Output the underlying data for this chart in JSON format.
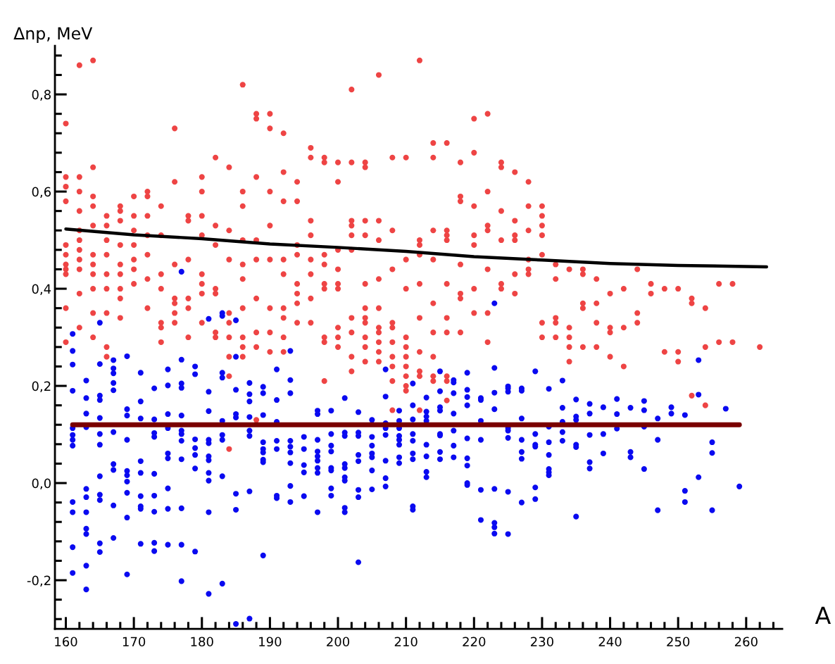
{
  "chart_data": {
    "type": "scatter",
    "xlabel": "A",
    "ylabel": "Δnp, MeV",
    "xlim": [
      158.4,
      265.3
    ],
    "ylim": [
      -0.3,
      0.9
    ],
    "xticks": [
      {
        "value": 160,
        "label": "160"
      },
      {
        "value": 162,
        "label": null
      },
      {
        "value": 164,
        "label": null
      },
      {
        "value": 166,
        "label": null
      },
      {
        "value": 168,
        "label": null
      },
      {
        "value": 170,
        "label": "170"
      },
      {
        "value": 172,
        "label": null
      },
      {
        "value": 174,
        "label": null
      },
      {
        "value": 176,
        "label": null
      },
      {
        "value": 178,
        "label": null
      },
      {
        "value": 180,
        "label": "180"
      },
      {
        "value": 182,
        "label": null
      },
      {
        "value": 184,
        "label": null
      },
      {
        "value": 186,
        "label": null
      },
      {
        "value": 188,
        "label": null
      },
      {
        "value": 190,
        "label": "190"
      },
      {
        "value": 192,
        "label": null
      },
      {
        "value": 194,
        "label": null
      },
      {
        "value": 196,
        "label": null
      },
      {
        "value": 198,
        "label": null
      },
      {
        "value": 200,
        "label": "200"
      },
      {
        "value": 202,
        "label": null
      },
      {
        "value": 204,
        "label": null
      },
      {
        "value": 206,
        "label": null
      },
      {
        "value": 208,
        "label": null
      },
      {
        "value": 210,
        "label": "210"
      },
      {
        "value": 212,
        "label": null
      },
      {
        "value": 214,
        "label": null
      },
      {
        "value": 216,
        "label": null
      },
      {
        "value": 218,
        "label": null
      },
      {
        "value": 220,
        "label": "220"
      },
      {
        "value": 222,
        "label": null
      },
      {
        "value": 224,
        "label": null
      },
      {
        "value": 226,
        "label": null
      },
      {
        "value": 228,
        "label": null
      },
      {
        "value": 230,
        "label": "230"
      },
      {
        "value": 232,
        "label": null
      },
      {
        "value": 234,
        "label": null
      },
      {
        "value": 236,
        "label": null
      },
      {
        "value": 238,
        "label": null
      },
      {
        "value": 240,
        "label": "240"
      },
      {
        "value": 242,
        "label": null
      },
      {
        "value": 244,
        "label": null
      },
      {
        "value": 246,
        "label": null
      },
      {
        "value": 248,
        "label": null
      },
      {
        "value": 250,
        "label": "250"
      },
      {
        "value": 252,
        "label": null
      },
      {
        "value": 254,
        "label": null
      },
      {
        "value": 256,
        "label": null
      },
      {
        "value": 258,
        "label": null
      },
      {
        "value": 260,
        "label": "260"
      },
      {
        "value": 262,
        "label": null
      },
      {
        "value": 264,
        "label": null
      }
    ],
    "yticks": [
      {
        "value": -0.28,
        "label": null
      },
      {
        "value": -0.24,
        "label": null
      },
      {
        "value": -0.2,
        "label": "-0,2"
      },
      {
        "value": -0.16,
        "label": null
      },
      {
        "value": -0.12,
        "label": null
      },
      {
        "value": -0.08,
        "label": null
      },
      {
        "value": -0.04,
        "label": null
      },
      {
        "value": 0,
        "label": "0,0"
      },
      {
        "value": 0.04,
        "label": null
      },
      {
        "value": 0.08,
        "label": null
      },
      {
        "value": 0.12,
        "label": null
      },
      {
        "value": 0.16,
        "label": null
      },
      {
        "value": 0.2,
        "label": "0,2"
      },
      {
        "value": 0.24,
        "label": null
      },
      {
        "value": 0.28,
        "label": null
      },
      {
        "value": 0.32,
        "label": null
      },
      {
        "value": 0.36,
        "label": null
      },
      {
        "value": 0.4,
        "label": "0,4"
      },
      {
        "value": 0.44,
        "label": null
      },
      {
        "value": 0.48,
        "label": null
      },
      {
        "value": 0.52,
        "label": null
      },
      {
        "value": 0.56,
        "label": null
      },
      {
        "value": 0.6,
        "label": "0,6"
      },
      {
        "value": 0.64,
        "label": null
      },
      {
        "value": 0.68,
        "label": null
      },
      {
        "value": 0.72,
        "label": null
      },
      {
        "value": 0.76,
        "label": null
      },
      {
        "value": 0.8,
        "label": "0,8"
      },
      {
        "value": 0.84,
        "label": null
      },
      {
        "value": 0.88,
        "label": null
      }
    ],
    "grid": false,
    "legend": false,
    "marker": "circle",
    "series": [
      {
        "color": "#ee4444",
        "x": [
          160,
          160,
          160,
          160,
          160,
          160,
          160,
          160,
          160,
          160,
          160,
          162,
          162,
          162,
          162,
          162,
          162,
          162,
          162,
          162,
          162,
          162,
          164,
          164,
          164,
          164,
          164,
          164,
          164,
          164,
          164,
          164,
          164,
          166,
          166,
          166,
          166,
          166,
          166,
          166,
          166,
          166,
          168,
          168,
          168,
          168,
          168,
          168,
          168,
          168,
          168,
          170,
          170,
          170,
          170,
          170,
          170,
          170,
          172,
          172,
          172,
          172,
          172,
          172,
          172,
          174,
          174,
          174,
          174,
          174,
          174,
          174,
          176,
          176,
          176,
          176,
          176,
          176,
          176,
          178,
          178,
          178,
          178,
          178,
          178,
          180,
          180,
          180,
          180,
          180,
          180,
          180,
          180,
          182,
          182,
          182,
          182,
          182,
          182,
          182,
          184,
          184,
          184,
          184,
          184,
          184,
          184,
          184,
          184,
          186,
          186,
          186,
          186,
          186,
          186,
          186,
          186,
          186,
          186,
          188,
          188,
          188,
          188,
          188,
          188,
          188,
          188,
          188,
          190,
          190,
          190,
          190,
          190,
          190,
          190,
          190,
          192,
          192,
          192,
          192,
          192,
          192,
          192,
          192,
          192,
          194,
          194,
          194,
          194,
          194,
          194,
          194,
          194,
          196,
          196,
          196,
          196,
          196,
          196,
          196,
          196,
          198,
          198,
          198,
          198,
          198,
          198,
          198,
          198,
          198,
          200,
          200,
          200,
          200,
          200,
          200,
          200,
          200,
          200,
          202,
          202,
          202,
          202,
          202,
          202,
          202,
          202,
          202,
          202,
          204,
          204,
          204,
          204,
          204,
          204,
          204,
          204,
          204,
          204,
          204,
          206,
          206,
          206,
          206,
          206,
          206,
          206,
          206,
          206,
          206,
          208,
          208,
          208,
          208,
          208,
          208,
          208,
          208,
          208,
          208,
          210,
          210,
          210,
          210,
          210,
          210,
          210,
          210,
          210,
          210,
          212,
          212,
          212,
          212,
          212,
          212,
          212,
          212,
          212,
          212,
          214,
          214,
          214,
          214,
          214,
          214,
          214,
          214,
          214,
          216,
          216,
          216,
          216,
          216,
          216,
          216,
          216,
          216,
          216,
          218,
          218,
          218,
          218,
          218,
          218,
          218,
          220,
          220,
          220,
          220,
          220,
          220,
          220,
          222,
          222,
          222,
          222,
          222,
          222,
          222,
          224,
          224,
          224,
          224,
          224,
          224,
          226,
          226,
          226,
          226,
          226,
          226,
          228,
          228,
          228,
          228,
          228,
          228,
          230,
          230,
          230,
          230,
          230,
          230,
          230,
          232,
          232,
          232,
          232,
          232,
          234,
          234,
          234,
          234,
          234,
          236,
          236,
          236,
          236,
          236,
          238,
          238,
          238,
          238,
          240,
          240,
          240,
          240,
          242,
          242,
          242,
          244,
          244,
          244,
          246,
          246,
          248,
          248,
          250,
          250,
          250,
          252,
          252,
          252,
          254,
          254,
          254,
          256,
          256,
          258,
          258,
          262
        ],
        "values": [
          0.74,
          0.63,
          0.61,
          0.58,
          0.49,
          0.47,
          0.45,
          0.44,
          0.43,
          0.36,
          0.29,
          0.86,
          0.63,
          0.6,
          0.56,
          0.52,
          0.5,
          0.48,
          0.46,
          0.44,
          0.39,
          0.32,
          0.87,
          0.65,
          0.59,
          0.57,
          0.53,
          0.47,
          0.45,
          0.43,
          0.4,
          0.35,
          0.3,
          0.55,
          0.53,
          0.5,
          0.47,
          0.43,
          0.4,
          0.35,
          0.28,
          0.26,
          0.57,
          0.56,
          0.54,
          0.49,
          0.45,
          0.43,
          0.4,
          0.38,
          0.34,
          0.59,
          0.55,
          0.52,
          0.49,
          0.46,
          0.44,
          0.41,
          0.6,
          0.59,
          0.55,
          0.51,
          0.47,
          0.42,
          0.36,
          0.57,
          0.51,
          0.43,
          0.4,
          0.33,
          0.32,
          0.29,
          0.73,
          0.62,
          0.45,
          0.38,
          0.37,
          0.35,
          0.33,
          0.55,
          0.54,
          0.46,
          0.38,
          0.36,
          0.3,
          0.63,
          0.6,
          0.55,
          0.51,
          0.43,
          0.41,
          0.39,
          0.33,
          0.67,
          0.53,
          0.49,
          0.4,
          0.39,
          0.31,
          0.3,
          0.65,
          0.52,
          0.46,
          0.35,
          0.33,
          0.3,
          0.26,
          0.22,
          0.07,
          0.82,
          0.6,
          0.57,
          0.5,
          0.45,
          0.42,
          0.36,
          0.3,
          0.28,
          0.26,
          0.76,
          0.75,
          0.63,
          0.5,
          0.46,
          0.38,
          0.31,
          0.28,
          0.13,
          0.76,
          0.73,
          0.6,
          0.53,
          0.46,
          0.36,
          0.31,
          0.27,
          0.72,
          0.64,
          0.58,
          0.46,
          0.43,
          0.36,
          0.34,
          0.3,
          0.27,
          0.62,
          0.58,
          0.49,
          0.47,
          0.41,
          0.39,
          0.37,
          0.33,
          0.69,
          0.67,
          0.54,
          0.51,
          0.46,
          0.43,
          0.38,
          0.33,
          0.67,
          0.66,
          0.47,
          0.45,
          0.41,
          0.4,
          0.3,
          0.29,
          0.21,
          0.66,
          0.62,
          0.48,
          0.44,
          0.41,
          0.4,
          0.32,
          0.3,
          0.28,
          0.81,
          0.66,
          0.54,
          0.53,
          0.51,
          0.48,
          0.34,
          0.31,
          0.26,
          0.23,
          0.66,
          0.65,
          0.54,
          0.51,
          0.41,
          0.36,
          0.34,
          0.33,
          0.3,
          0.28,
          0.25,
          0.84,
          0.54,
          0.5,
          0.42,
          0.36,
          0.32,
          0.31,
          0.29,
          0.27,
          0.25,
          0.67,
          0.52,
          0.44,
          0.33,
          0.32,
          0.29,
          0.26,
          0.24,
          0.21,
          0.15,
          0.67,
          0.46,
          0.4,
          0.3,
          0.28,
          0.26,
          0.24,
          0.22,
          0.2,
          0.19,
          0.87,
          0.5,
          0.49,
          0.47,
          0.41,
          0.34,
          0.27,
          0.23,
          0.22,
          0.15,
          0.7,
          0.67,
          0.52,
          0.46,
          0.37,
          0.31,
          0.26,
          0.22,
          0.21,
          0.7,
          0.52,
          0.51,
          0.5,
          0.41,
          0.34,
          0.31,
          0.22,
          0.21,
          0.17,
          0.66,
          0.59,
          0.58,
          0.45,
          0.39,
          0.38,
          0.31,
          0.75,
          0.68,
          0.57,
          0.51,
          0.49,
          0.4,
          0.35,
          0.76,
          0.6,
          0.53,
          0.52,
          0.44,
          0.35,
          0.29,
          0.66,
          0.65,
          0.56,
          0.5,
          0.41,
          0.4,
          0.64,
          0.54,
          0.51,
          0.5,
          0.43,
          0.39,
          0.62,
          0.57,
          0.52,
          0.46,
          0.44,
          0.43,
          0.57,
          0.55,
          0.53,
          0.51,
          0.47,
          0.33,
          0.3,
          0.45,
          0.42,
          0.34,
          0.33,
          0.3,
          0.44,
          0.32,
          0.3,
          0.28,
          0.25,
          0.44,
          0.43,
          0.37,
          0.36,
          0.28,
          0.42,
          0.37,
          0.33,
          0.28,
          0.39,
          0.32,
          0.31,
          0.26,
          0.4,
          0.32,
          0.24,
          0.44,
          0.35,
          0.33,
          0.41,
          0.39,
          0.4,
          0.27,
          0.4,
          0.27,
          0.25,
          0.38,
          0.37,
          0.18,
          0.36,
          0.28,
          0.16,
          0.41,
          0.29,
          0.41,
          0.29,
          0.28
        ]
      },
      {
        "color": "#0a0af0",
        "x": [
          161,
          161,
          161,
          161,
          161,
          161,
          161,
          161,
          161,
          161,
          161,
          161,
          163,
          163,
          163,
          163,
          163,
          163,
          163,
          163,
          163,
          163,
          163,
          165,
          165,
          165,
          165,
          165,
          165,
          165,
          165,
          165,
          165,
          165,
          165,
          167,
          167,
          167,
          167,
          167,
          167,
          167,
          167,
          167,
          167,
          169,
          169,
          169,
          169,
          169,
          169,
          169,
          169,
          169,
          169,
          171,
          171,
          171,
          171,
          171,
          171,
          171,
          171,
          171,
          173,
          173,
          173,
          173,
          173,
          173,
          173,
          173,
          173,
          175,
          175,
          175,
          175,
          175,
          175,
          175,
          175,
          175,
          177,
          177,
          177,
          177,
          177,
          177,
          177,
          177,
          177,
          177,
          177,
          177,
          179,
          179,
          179,
          179,
          179,
          179,
          179,
          181,
          181,
          181,
          181,
          181,
          181,
          181,
          181,
          181,
          181,
          181,
          183,
          183,
          183,
          183,
          183,
          183,
          183,
          183,
          183,
          185,
          185,
          185,
          185,
          185,
          185,
          185,
          185,
          187,
          187,
          187,
          187,
          187,
          187,
          187,
          187,
          189,
          189,
          189,
          189,
          189,
          189,
          189,
          189,
          189,
          191,
          191,
          191,
          191,
          191,
          191,
          191,
          193,
          193,
          193,
          193,
          193,
          193,
          193,
          193,
          193,
          195,
          195,
          195,
          195,
          195,
          197,
          197,
          197,
          197,
          197,
          197,
          197,
          197,
          197,
          199,
          199,
          199,
          199,
          199,
          199,
          199,
          199,
          201,
          201,
          201,
          201,
          201,
          201,
          201,
          201,
          201,
          203,
          203,
          203,
          203,
          203,
          203,
          203,
          203,
          205,
          205,
          205,
          205,
          205,
          205,
          205,
          207,
          207,
          207,
          207,
          207,
          207,
          207,
          207,
          209,
          209,
          209,
          209,
          209,
          209,
          209,
          209,
          211,
          211,
          211,
          211,
          211,
          211,
          211,
          211,
          211,
          213,
          213,
          213,
          213,
          213,
          213,
          213,
          213,
          215,
          215,
          215,
          215,
          215,
          215,
          215,
          215,
          217,
          217,
          217,
          217,
          217,
          217,
          217,
          219,
          219,
          219,
          219,
          219,
          219,
          219,
          219,
          219,
          221,
          221,
          221,
          221,
          221,
          221,
          223,
          223,
          223,
          223,
          223,
          223,
          223,
          223,
          225,
          225,
          225,
          225,
          225,
          225,
          225,
          225,
          227,
          227,
          227,
          227,
          227,
          227,
          227,
          229,
          229,
          229,
          229,
          229,
          229,
          231,
          231,
          231,
          231,
          231,
          231,
          231,
          233,
          233,
          233,
          233,
          233,
          235,
          235,
          235,
          235,
          235,
          235,
          237,
          237,
          237,
          237,
          237,
          239,
          239,
          239,
          241,
          241,
          241,
          243,
          243,
          243,
          245,
          245,
          245,
          245,
          247,
          247,
          247,
          249,
          249,
          251,
          251,
          251,
          253,
          253,
          253,
          255,
          255,
          255,
          257,
          259
        ],
        "values": [
          0.307,
          0.272,
          0.244,
          0.19,
          0.113,
          0.099,
          0.089,
          0.077,
          -0.039,
          -0.06,
          -0.132,
          -0.185,
          0.211,
          0.175,
          0.143,
          0.115,
          -0.012,
          -0.029,
          -0.06,
          -0.094,
          -0.105,
          -0.17,
          -0.219,
          0.33,
          0.245,
          0.18,
          0.171,
          0.134,
          0.101,
          0.079,
          0.014,
          -0.024,
          -0.035,
          -0.124,
          -0.142,
          0.253,
          0.236,
          0.226,
          0.206,
          0.191,
          0.105,
          0.039,
          0.027,
          -0.046,
          -0.113,
          0.261,
          0.152,
          0.139,
          0.089,
          0.025,
          0.016,
          0.003,
          -0.02,
          -0.071,
          -0.188,
          0.227,
          0.168,
          0.133,
          0.045,
          0.021,
          -0.027,
          -0.048,
          -0.053,
          -0.125,
          0.195,
          0.131,
          0.103,
          0.095,
          0.019,
          -0.026,
          -0.059,
          -0.123,
          -0.14,
          0.234,
          0.201,
          0.142,
          0.113,
          0.061,
          0.051,
          -0.011,
          -0.053,
          -0.127,
          0.435,
          0.254,
          0.205,
          0.196,
          0.139,
          0.108,
          0.101,
          0.087,
          0.049,
          -0.052,
          -0.127,
          -0.202,
          0.24,
          0.224,
          0.09,
          0.072,
          0.058,
          0.03,
          -0.141,
          0.338,
          0.188,
          0.148,
          0.089,
          0.082,
          0.055,
          0.047,
          0.021,
          0.005,
          -0.06,
          -0.228,
          0.35,
          0.344,
          0.227,
          0.217,
          0.128,
          0.099,
          0.089,
          0.014,
          -0.207,
          0.335,
          0.26,
          0.192,
          0.142,
          0.135,
          -0.022,
          -0.055,
          -0.29,
          0.206,
          0.183,
          0.168,
          0.136,
          0.108,
          0.097,
          -0.017,
          -0.279,
          0.198,
          0.185,
          0.14,
          0.084,
          0.07,
          0.063,
          0.048,
          0.043,
          -0.149,
          0.234,
          0.171,
          0.126,
          0.087,
          0.07,
          -0.026,
          -0.031,
          0.272,
          0.212,
          0.185,
          0.087,
          0.075,
          0.063,
          0.041,
          -0.006,
          -0.039,
          0.095,
          0.07,
          0.037,
          0.022,
          -0.027,
          0.149,
          0.142,
          0.089,
          0.065,
          0.055,
          0.046,
          0.031,
          0.021,
          -0.06,
          0.149,
          0.101,
          0.077,
          0.065,
          0.031,
          0.026,
          -0.011,
          -0.026,
          0.175,
          0.104,
          0.097,
          0.039,
          0.031,
          0.012,
          0.005,
          -0.051,
          -0.06,
          0.146,
          0.104,
          0.097,
          0.058,
          0.045,
          -0.014,
          -0.029,
          -0.163,
          0.13,
          0.095,
          0.077,
          0.061,
          0.053,
          0.026,
          -0.013,
          0.234,
          0.178,
          0.123,
          0.113,
          0.099,
          0.046,
          0.01,
          -0.007,
          0.149,
          0.128,
          0.113,
          0.097,
          0.089,
          0.079,
          0.053,
          0.041,
          0.205,
          0.16,
          0.131,
          0.101,
          0.087,
          0.061,
          0.049,
          -0.048,
          -0.055,
          0.176,
          0.147,
          0.137,
          0.128,
          0.079,
          0.055,
          0.023,
          0.012,
          0.23,
          0.189,
          0.156,
          0.149,
          0.101,
          0.098,
          0.064,
          0.049,
          0.212,
          0.207,
          0.185,
          0.143,
          0.108,
          0.077,
          0.053,
          0.227,
          0.192,
          0.177,
          0.16,
          0.092,
          0.051,
          0.036,
          0.0,
          -0.004,
          0.175,
          0.171,
          0.128,
          0.089,
          -0.014,
          -0.076,
          0.37,
          0.237,
          0.186,
          0.152,
          -0.012,
          -0.082,
          -0.091,
          -0.104,
          0.199,
          0.195,
          0.188,
          0.113,
          0.108,
          0.093,
          -0.018,
          -0.105,
          0.195,
          0.19,
          0.133,
          0.089,
          0.064,
          0.05,
          -0.04,
          0.23,
          0.101,
          0.079,
          0.075,
          -0.009,
          -0.033,
          0.194,
          0.116,
          0.084,
          0.058,
          0.029,
          0.022,
          0.016,
          0.211,
          0.155,
          0.126,
          0.105,
          0.087,
          0.172,
          0.137,
          0.13,
          0.079,
          0.074,
          -0.069,
          0.163,
          0.143,
          0.099,
          0.043,
          0.03,
          0.156,
          0.101,
          0.061,
          0.173,
          0.142,
          0.112,
          0.155,
          0.064,
          0.053,
          0.169,
          0.15,
          0.116,
          0.029,
          0.133,
          0.089,
          -0.056,
          0.156,
          0.143,
          0.14,
          -0.016,
          -0.039,
          0.253,
          0.182,
          0.012,
          0.084,
          0.062,
          -0.056,
          0.153,
          -0.007
        ]
      },
      {
        "type": "line",
        "color": "#000000",
        "marker": "none",
        "line_style": "solid",
        "x": [
          160,
          170,
          180,
          190,
          200,
          210,
          220,
          230,
          240,
          250,
          263
        ],
        "values": [
          0.523,
          0.511,
          0.503,
          0.492,
          0.485,
          0.477,
          0.466,
          0.459,
          0.452,
          0.448,
          0.445
        ]
      },
      {
        "type": "line",
        "color": "#7a0000",
        "marker": "none",
        "line_style": "solid",
        "x": [
          161,
          259
        ],
        "values": [
          0.12,
          0.12
        ]
      }
    ]
  }
}
